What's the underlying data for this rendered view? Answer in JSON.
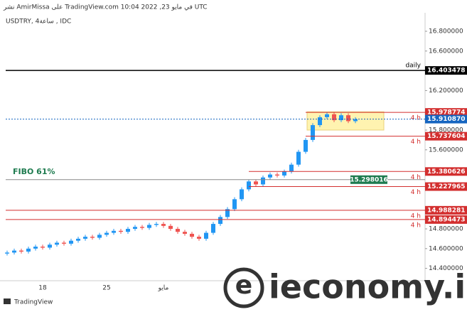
{
  "header": "نشر AmirMissa على TradingView.com في مايو 23, 2022 10:04 UTC",
  "chart_data": {
    "type": "candlestick",
    "symbol": "USDTRY, ساعة4 , IDC",
    "categories": [
      null,
      null,
      null,
      null,
      null,
      "18",
      null,
      null,
      null,
      null,
      null,
      null,
      null,
      null,
      "25",
      null,
      null,
      null,
      null,
      null,
      null,
      null,
      "مايو",
      null,
      null,
      null,
      null,
      null,
      null,
      null,
      null,
      null,
      null,
      null,
      null,
      null,
      null,
      null,
      null,
      null,
      null,
      null,
      null,
      null,
      null,
      null,
      null,
      null,
      null,
      null
    ],
    "open": [
      14.55,
      14.56,
      14.58,
      14.57,
      14.6,
      14.62,
      14.61,
      14.64,
      14.66,
      14.65,
      14.68,
      14.7,
      14.72,
      14.71,
      14.74,
      14.76,
      14.78,
      14.77,
      14.8,
      14.82,
      14.81,
      14.84,
      14.85,
      14.83,
      14.8,
      14.77,
      14.75,
      14.72,
      14.7,
      14.76,
      14.85,
      14.92,
      15.0,
      15.1,
      15.2,
      15.28,
      15.25,
      15.32,
      15.35,
      15.34,
      15.38,
      15.45,
      15.58,
      15.7,
      15.85,
      15.93,
      15.96,
      15.9,
      15.95,
      15.89
    ],
    "high": [
      14.58,
      14.6,
      14.6,
      14.62,
      14.64,
      14.64,
      14.66,
      14.68,
      14.68,
      14.7,
      14.72,
      14.74,
      14.74,
      14.76,
      14.78,
      14.8,
      14.8,
      14.82,
      14.84,
      14.84,
      14.86,
      14.87,
      14.87,
      14.85,
      14.82,
      14.79,
      14.77,
      14.74,
      14.78,
      14.87,
      14.94,
      15.02,
      15.12,
      15.22,
      15.3,
      15.3,
      15.34,
      15.37,
      15.37,
      15.4,
      15.47,
      15.6,
      15.72,
      15.87,
      15.95,
      15.98,
      15.98,
      15.97,
      15.97,
      15.93
    ],
    "low": [
      14.53,
      14.54,
      14.55,
      14.55,
      14.58,
      14.59,
      14.59,
      14.62,
      14.63,
      14.63,
      14.66,
      14.68,
      14.69,
      14.69,
      14.72,
      14.74,
      14.75,
      14.75,
      14.78,
      14.79,
      14.79,
      14.82,
      14.81,
      14.78,
      14.75,
      14.73,
      14.7,
      14.68,
      14.68,
      14.74,
      14.83,
      14.9,
      14.98,
      15.08,
      15.18,
      15.23,
      15.23,
      15.3,
      15.32,
      15.32,
      15.36,
      15.43,
      15.56,
      15.68,
      15.83,
      15.91,
      15.88,
      15.88,
      15.87,
      15.87
    ],
    "close": [
      14.56,
      14.58,
      14.57,
      14.6,
      14.62,
      14.61,
      14.64,
      14.66,
      14.65,
      14.68,
      14.7,
      14.72,
      14.71,
      14.74,
      14.76,
      14.78,
      14.77,
      14.8,
      14.82,
      14.81,
      14.84,
      14.85,
      14.83,
      14.8,
      14.77,
      14.75,
      14.72,
      14.7,
      14.76,
      14.85,
      14.92,
      15.0,
      15.1,
      15.2,
      15.28,
      15.25,
      15.32,
      15.35,
      15.34,
      15.38,
      15.45,
      15.58,
      15.7,
      15.85,
      15.93,
      15.96,
      15.9,
      15.95,
      15.89,
      15.91
    ],
    "up_color": "#2196f3",
    "down_color": "#ef5350",
    "ylim": [
      14.275,
      16.987
    ],
    "yticks": [
      {
        "value": 14.4,
        "label": "14.400000"
      },
      {
        "value": 14.6,
        "label": "14.600000"
      },
      {
        "value": 14.8,
        "label": "14.800000"
      },
      {
        "value": 15.6,
        "label": "15.600000"
      },
      {
        "value": 15.8,
        "label": "15.800000"
      },
      {
        "value": 16.2,
        "label": "16.200000"
      },
      {
        "value": 16.6,
        "label": "16.600000"
      },
      {
        "value": 16.8,
        "label": "16.800000"
      }
    ],
    "levels": [
      {
        "value": 16.403478,
        "tag": "daily",
        "color": "#000000"
      },
      {
        "value": 15.978774,
        "tag": "4 h",
        "color": "#d32f2f"
      },
      {
        "value": 15.91087,
        "label": "15.910870",
        "color": "#1565c0",
        "style": "dotted"
      },
      {
        "value": 15.737604,
        "tag": "4 h",
        "color": "#d32f2f"
      },
      {
        "value": 15.380626,
        "tag": "4 h",
        "color": "#d32f2f"
      },
      {
        "value": 15.227965,
        "tag": "4 h",
        "color": "#d32f2f"
      },
      {
        "value": 14.988281,
        "tag": "4 h",
        "color": "#d32f2f"
      },
      {
        "value": 14.894473,
        "tag": "4 h",
        "color": "#d32f2f"
      }
    ],
    "fibo": {
      "name": "FIBO 61%",
      "value": 15.298016,
      "color": "#1e7b4f"
    },
    "zone": {
      "low": 15.8,
      "high": 15.985,
      "color": "#fff3b0"
    },
    "watermark_logo": "e",
    "watermark": "ieconomy.io",
    "branding": "TradingView"
  }
}
